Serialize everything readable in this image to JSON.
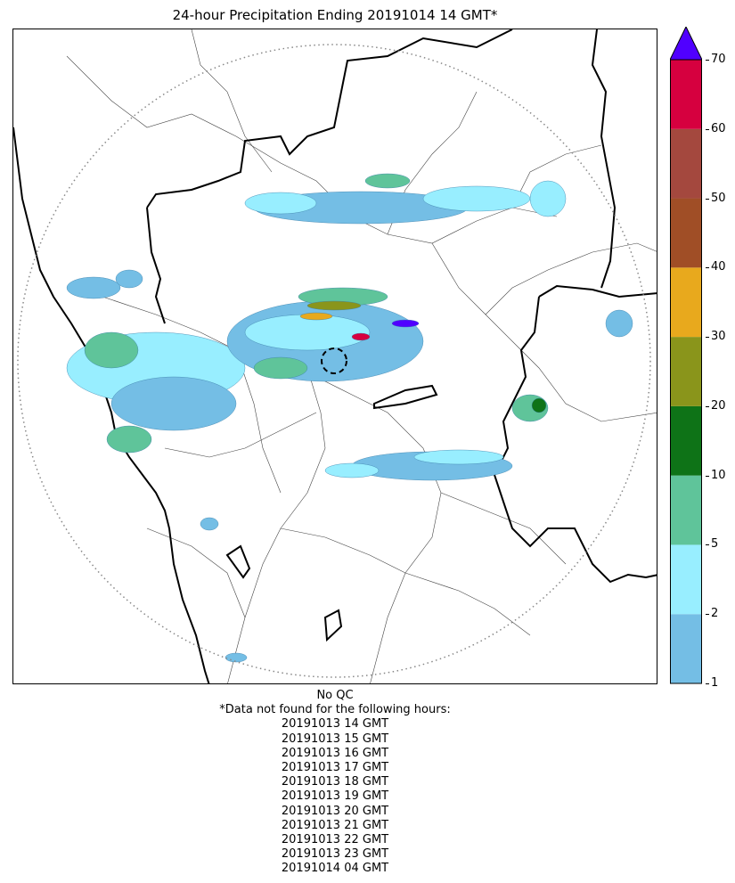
{
  "title": "24-hour Precipitation Ending 20191014 14 GMT*",
  "colorbar": {
    "levels": [
      "1",
      "2",
      "5",
      "10",
      "20",
      "30",
      "40",
      "50",
      "60",
      "70"
    ],
    "colors": [
      "#74bee5",
      "#98eeff",
      "#5fc49a",
      "#0e7317",
      "#8a951b",
      "#e8a91d",
      "#a04e26",
      "#a4483e",
      "#d6003f"
    ],
    "extend_color": "#5000ff",
    "units_note": ""
  },
  "map": {
    "features": [
      "coastline",
      "state-borders",
      "district-borders",
      "radar-range-ring",
      "radar-site-marker",
      "precipitation-shading"
    ],
    "range_ring_style": "dotted-grey",
    "radar_marker_style": "dashed-black-circle"
  },
  "footer": {
    "qc_note": "No QC",
    "missing_note": "*Data not found for the following hours:",
    "missing_hours": [
      "20191013 14 GMT",
      "20191013 15 GMT",
      "20191013 16 GMT",
      "20191013 17 GMT",
      "20191013 18 GMT",
      "20191013 19 GMT",
      "20191013 20 GMT",
      "20191013 21 GMT",
      "20191013 22 GMT",
      "20191013 23 GMT",
      "20191014 04 GMT"
    ]
  }
}
